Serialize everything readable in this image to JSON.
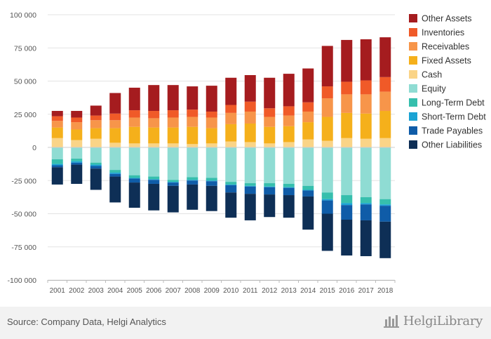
{
  "chart_data": {
    "type": "bar",
    "stacked": true,
    "categories": [
      "2001",
      "2002",
      "2003",
      "2004",
      "2005",
      "2006",
      "2007",
      "2008",
      "2009",
      "2010",
      "2011",
      "2012",
      "2013",
      "2014",
      "2015",
      "2016",
      "2017",
      "2018"
    ],
    "ylim": [
      -100000,
      100000
    ],
    "yticks": [
      -100000,
      -75000,
      -50000,
      -25000,
      0,
      25000,
      50000,
      75000,
      100000
    ],
    "ytick_labels": [
      "-100 000",
      "-75 000",
      "-50 000",
      "-25 000",
      "0",
      "25 000",
      "50 000",
      "75 000",
      "100 000"
    ],
    "grid": true,
    "legend_position": "right",
    "series": [
      {
        "name": "Other Assets",
        "side": "assets",
        "color": "#a51c1f",
        "values": [
          4000,
          5000,
          7500,
          15500,
          17000,
          19500,
          19000,
          17500,
          19500,
          20500,
          20000,
          23000,
          24500,
          25500,
          30500,
          31500,
          31000,
          30000
        ]
      },
      {
        "name": "Inventories",
        "side": "assets",
        "color": "#f05a28",
        "values": [
          3500,
          3500,
          3500,
          5000,
          5500,
          5500,
          5500,
          5500,
          4500,
          6000,
          7500,
          6500,
          7000,
          7000,
          9000,
          9500,
          10500,
          11000
        ]
      },
      {
        "name": "Receivables",
        "side": "assets",
        "color": "#f7954a",
        "values": [
          5000,
          5500,
          6000,
          6000,
          7000,
          7000,
          7500,
          7500,
          8000,
          8500,
          9000,
          7500,
          8000,
          8000,
          14000,
          14000,
          14500,
          14500
        ]
      },
      {
        "name": "Fixed Assets",
        "side": "assets",
        "color": "#f5b01b",
        "values": [
          8000,
          8000,
          8000,
          11000,
          12500,
          12000,
          12000,
          13000,
          11500,
          13000,
          14000,
          12500,
          12000,
          13000,
          18000,
          19000,
          19000,
          20500
        ]
      },
      {
        "name": "Cash",
        "side": "assets",
        "color": "#fad487",
        "values": [
          7000,
          5500,
          6500,
          3500,
          3000,
          3000,
          3000,
          2500,
          3000,
          4500,
          4000,
          3000,
          4000,
          6000,
          5000,
          7000,
          6500,
          7000
        ]
      },
      {
        "name": "Equity",
        "side": "liabilities",
        "color": "#8fdcd3",
        "values": [
          9000,
          8500,
          11500,
          17000,
          21000,
          22000,
          24500,
          22500,
          23000,
          26000,
          27000,
          27000,
          27500,
          29000,
          34000,
          36000,
          37500,
          39000
        ]
      },
      {
        "name": "Long-Term Debt",
        "side": "liabilities",
        "color": "#36bfad",
        "values": [
          3500,
          2000,
          1500,
          2000,
          2000,
          2000,
          1500,
          2000,
          2000,
          2000,
          2000,
          2500,
          2500,
          3000,
          5000,
          6000,
          4500,
          4000
        ]
      },
      {
        "name": "Short-Term Debt",
        "side": "liabilities",
        "color": "#1ba3d4",
        "values": [
          1000,
          1000,
          1000,
          1000,
          500,
          500,
          500,
          500,
          500,
          500,
          500,
          500,
          500,
          500,
          1000,
          1500,
          1000,
          1000
        ]
      },
      {
        "name": "Trade Payables",
        "side": "liabilities",
        "color": "#0f5ca8",
        "values": [
          1500,
          1500,
          2000,
          2000,
          3000,
          3000,
          2500,
          3000,
          3500,
          5500,
          5500,
          5500,
          5500,
          4500,
          10000,
          11000,
          12000,
          12000
        ]
      },
      {
        "name": "Other Liabilities",
        "side": "liabilities",
        "color": "#0e2f56",
        "values": [
          13000,
          14500,
          16000,
          19500,
          19000,
          20000,
          20000,
          19000,
          19000,
          19000,
          20000,
          17000,
          17000,
          25000,
          28000,
          27000,
          27000,
          27500
        ]
      }
    ]
  },
  "footer": {
    "source": "Source: Company Data, Helgi Analytics",
    "brand": "HelgiLibrary"
  }
}
